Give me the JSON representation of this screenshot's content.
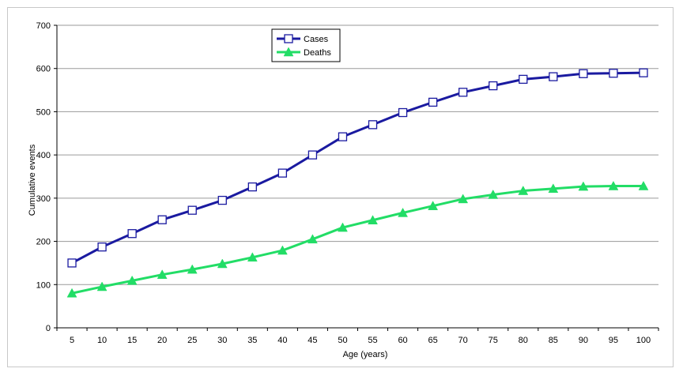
{
  "chart_data": {
    "type": "line",
    "title": "",
    "xlabel": "Age (years)",
    "ylabel": "Cumulative events",
    "x": [
      5,
      10,
      15,
      20,
      25,
      30,
      35,
      40,
      45,
      50,
      55,
      60,
      65,
      70,
      75,
      80,
      85,
      90,
      95,
      100
    ],
    "x_tick_labels": [
      "5",
      "10",
      "15",
      "20",
      "25",
      "30",
      "35",
      "40",
      "45",
      "50",
      "55",
      "60",
      "65",
      "70",
      "75",
      "80",
      "85",
      "90",
      "95",
      "100"
    ],
    "ylim": [
      0,
      700
    ],
    "y_ticks": [
      0,
      100,
      200,
      300,
      400,
      500,
      600,
      700
    ],
    "y_tick_labels": [
      "0",
      "100",
      "200",
      "300",
      "400",
      "500",
      "600",
      "700"
    ],
    "grid": {
      "horizontal": true,
      "vertical": false
    },
    "legend_position": "top-center",
    "series": [
      {
        "name": "Cases",
        "color": "#1a1aa0",
        "marker": "open-square",
        "values": [
          150,
          187,
          218,
          250,
          272,
          295,
          326,
          358,
          400,
          442,
          470,
          498,
          522,
          545,
          560,
          575,
          581,
          588,
          589,
          590
        ]
      },
      {
        "name": "Deaths",
        "color": "#22dd66",
        "marker": "filled-triangle",
        "values": [
          80,
          95,
          109,
          123,
          135,
          148,
          163,
          179,
          205,
          232,
          249,
          266,
          282,
          298,
          308,
          317,
          322,
          327,
          328,
          328
        ]
      }
    ]
  }
}
